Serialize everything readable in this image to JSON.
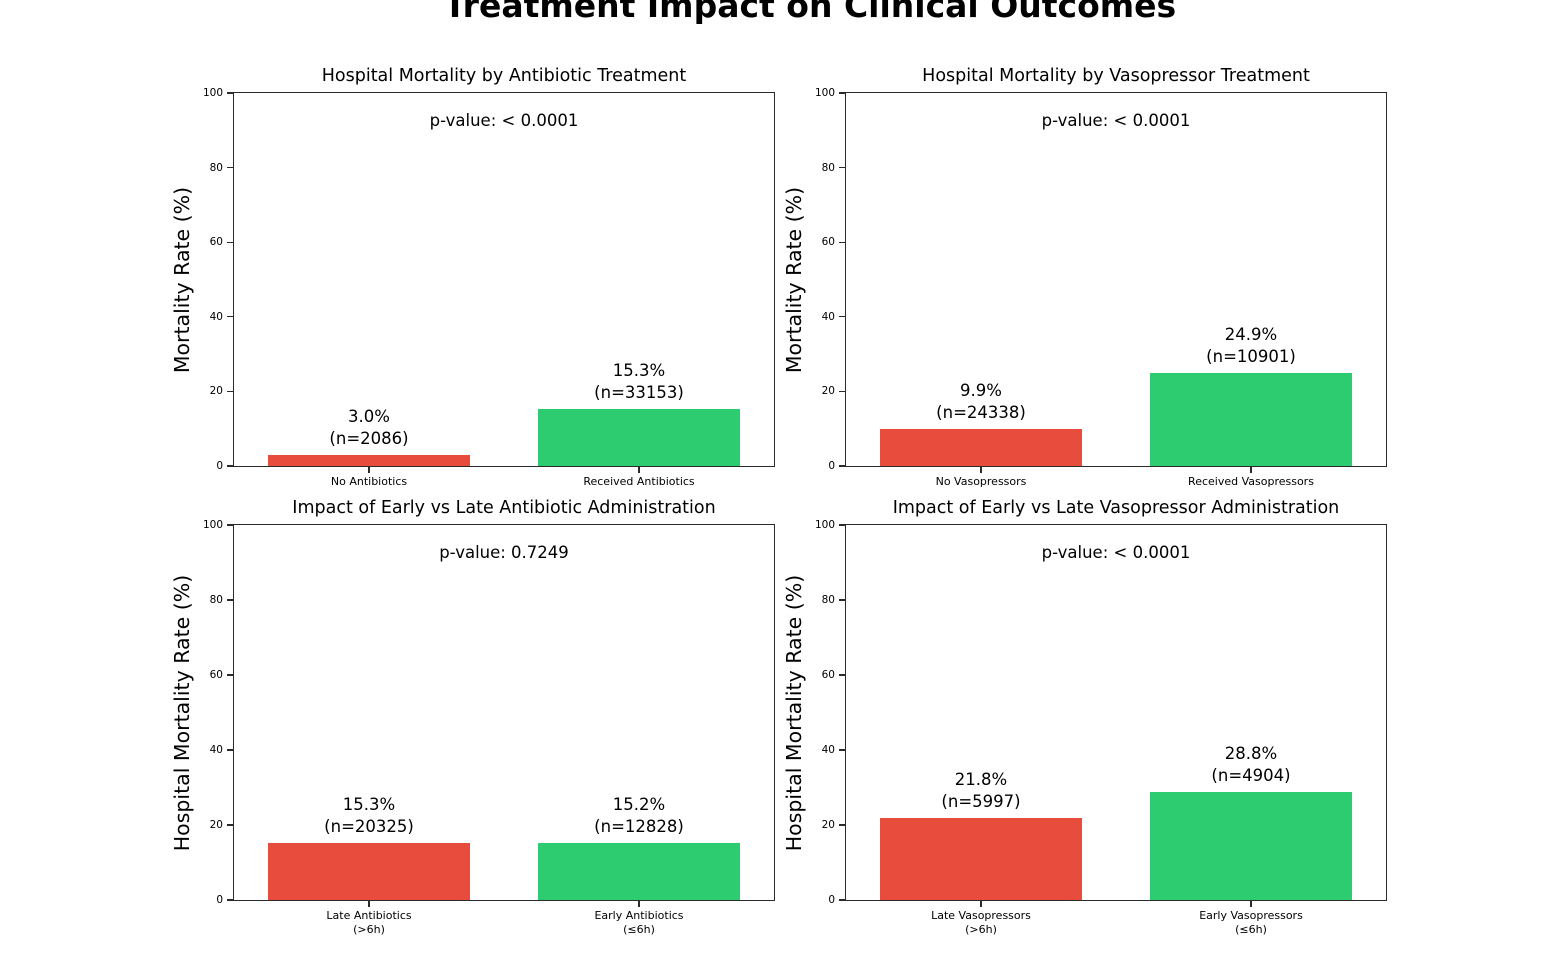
{
  "figure_title": "Treatment Impact on Clinical Outcomes",
  "chart_data": [
    {
      "type": "bar",
      "title": "Hospital Mortality by Antibiotic Treatment",
      "annotation": "p-value: < 0.0001",
      "ylabel": "Mortality Rate (%)",
      "ylim": [
        0,
        100
      ],
      "yticks": [
        0,
        20,
        40,
        60,
        80,
        100
      ],
      "grid": false,
      "legend": "none",
      "bars": [
        {
          "category": "No Antibiotics",
          "category_line2": "",
          "value": 3.0,
          "pct_label": "3.0%",
          "n_label": "(n=2086)",
          "color": "#e74c3c"
        },
        {
          "category": "Received Antibiotics",
          "category_line2": "",
          "value": 15.3,
          "pct_label": "15.3%",
          "n_label": "(n=33153)",
          "color": "#2ecc71"
        }
      ]
    },
    {
      "type": "bar",
      "title": "Hospital Mortality by Vasopressor Treatment",
      "annotation": "p-value: < 0.0001",
      "ylabel": "Mortality Rate (%)",
      "ylim": [
        0,
        100
      ],
      "yticks": [
        0,
        20,
        40,
        60,
        80,
        100
      ],
      "grid": false,
      "legend": "none",
      "bars": [
        {
          "category": "No Vasopressors",
          "category_line2": "",
          "value": 9.9,
          "pct_label": "9.9%",
          "n_label": "(n=24338)",
          "color": "#e74c3c"
        },
        {
          "category": "Received Vasopressors",
          "category_line2": "",
          "value": 24.9,
          "pct_label": "24.9%",
          "n_label": "(n=10901)",
          "color": "#2ecc71"
        }
      ]
    },
    {
      "type": "bar",
      "title": "Impact of Early vs Late Antibiotic Administration",
      "annotation": "p-value: 0.7249",
      "ylabel": "Hospital Mortality Rate (%)",
      "ylim": [
        0,
        100
      ],
      "yticks": [
        0,
        20,
        40,
        60,
        80,
        100
      ],
      "grid": false,
      "legend": "none",
      "bars": [
        {
          "category": "Late Antibiotics",
          "category_line2": "(>6h)",
          "value": 15.3,
          "pct_label": "15.3%",
          "n_label": "(n=20325)",
          "color": "#e74c3c"
        },
        {
          "category": "Early Antibiotics",
          "category_line2": "(≤6h)",
          "value": 15.2,
          "pct_label": "15.2%",
          "n_label": "(n=12828)",
          "color": "#2ecc71"
        }
      ]
    },
    {
      "type": "bar",
      "title": "Impact of Early vs Late Vasopressor Administration",
      "annotation": "p-value: < 0.0001",
      "ylabel": "Hospital Mortality Rate (%)",
      "ylim": [
        0,
        100
      ],
      "yticks": [
        0,
        20,
        40,
        60,
        80,
        100
      ],
      "grid": false,
      "legend": "none",
      "bars": [
        {
          "category": "Late Vasopressors",
          "category_line2": "(>6h)",
          "value": 21.8,
          "pct_label": "21.8%",
          "n_label": "(n=5997)",
          "color": "#e74c3c"
        },
        {
          "category": "Early Vasopressors",
          "category_line2": "(≤6h)",
          "value": 28.8,
          "pct_label": "28.8%",
          "n_label": "(n=4904)",
          "color": "#2ecc71"
        }
      ]
    }
  ]
}
